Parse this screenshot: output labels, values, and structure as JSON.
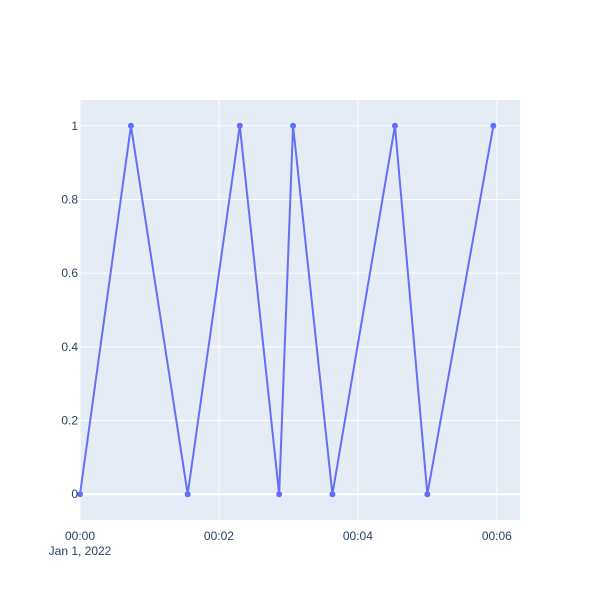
{
  "chart_data": {
    "type": "line",
    "title": "",
    "xlabel": "",
    "ylabel": "",
    "x_axis": {
      "type": "date",
      "range": [
        "2022-01-01 00:00:00",
        "2022-01-01 00:06:20"
      ],
      "ticks": [
        "2022-01-01 00:00:00",
        "2022-01-01 00:02:00",
        "2022-01-01 00:04:00",
        "2022-01-01 00:06:00"
      ],
      "tick_labels": [
        "00:00",
        "00:02",
        "00:04",
        "00:06"
      ],
      "date_label": "Jan 1, 2022"
    },
    "y_axis": {
      "range": [
        -0.07,
        1.07
      ],
      "ticks": [
        0,
        0.2,
        0.4,
        0.6,
        0.8,
        1
      ],
      "tick_labels": [
        "0",
        "0.2",
        "0.4",
        "0.6",
        "0.8",
        "1"
      ]
    },
    "grid": true,
    "series": [
      {
        "color": "#636efa",
        "mode": "lines+markers",
        "x": [
          "2022-01-01 00:00:00",
          "2022-01-01 00:00:44",
          "2022-01-01 00:01:33",
          "2022-01-01 00:02:18",
          "2022-01-01 00:02:52",
          "2022-01-01 00:03:04",
          "2022-01-01 00:03:38",
          "2022-01-01 00:04:32",
          "2022-01-01 00:05:00",
          "2022-01-01 00:05:57"
        ],
        "y": [
          0,
          1,
          0,
          1,
          0,
          1,
          0,
          1,
          0,
          1
        ]
      }
    ],
    "colors": {
      "plot_bg": "#e5ecf6",
      "grid": "#ffffff",
      "text": "#2a3f5f",
      "line": "#636efa"
    }
  }
}
